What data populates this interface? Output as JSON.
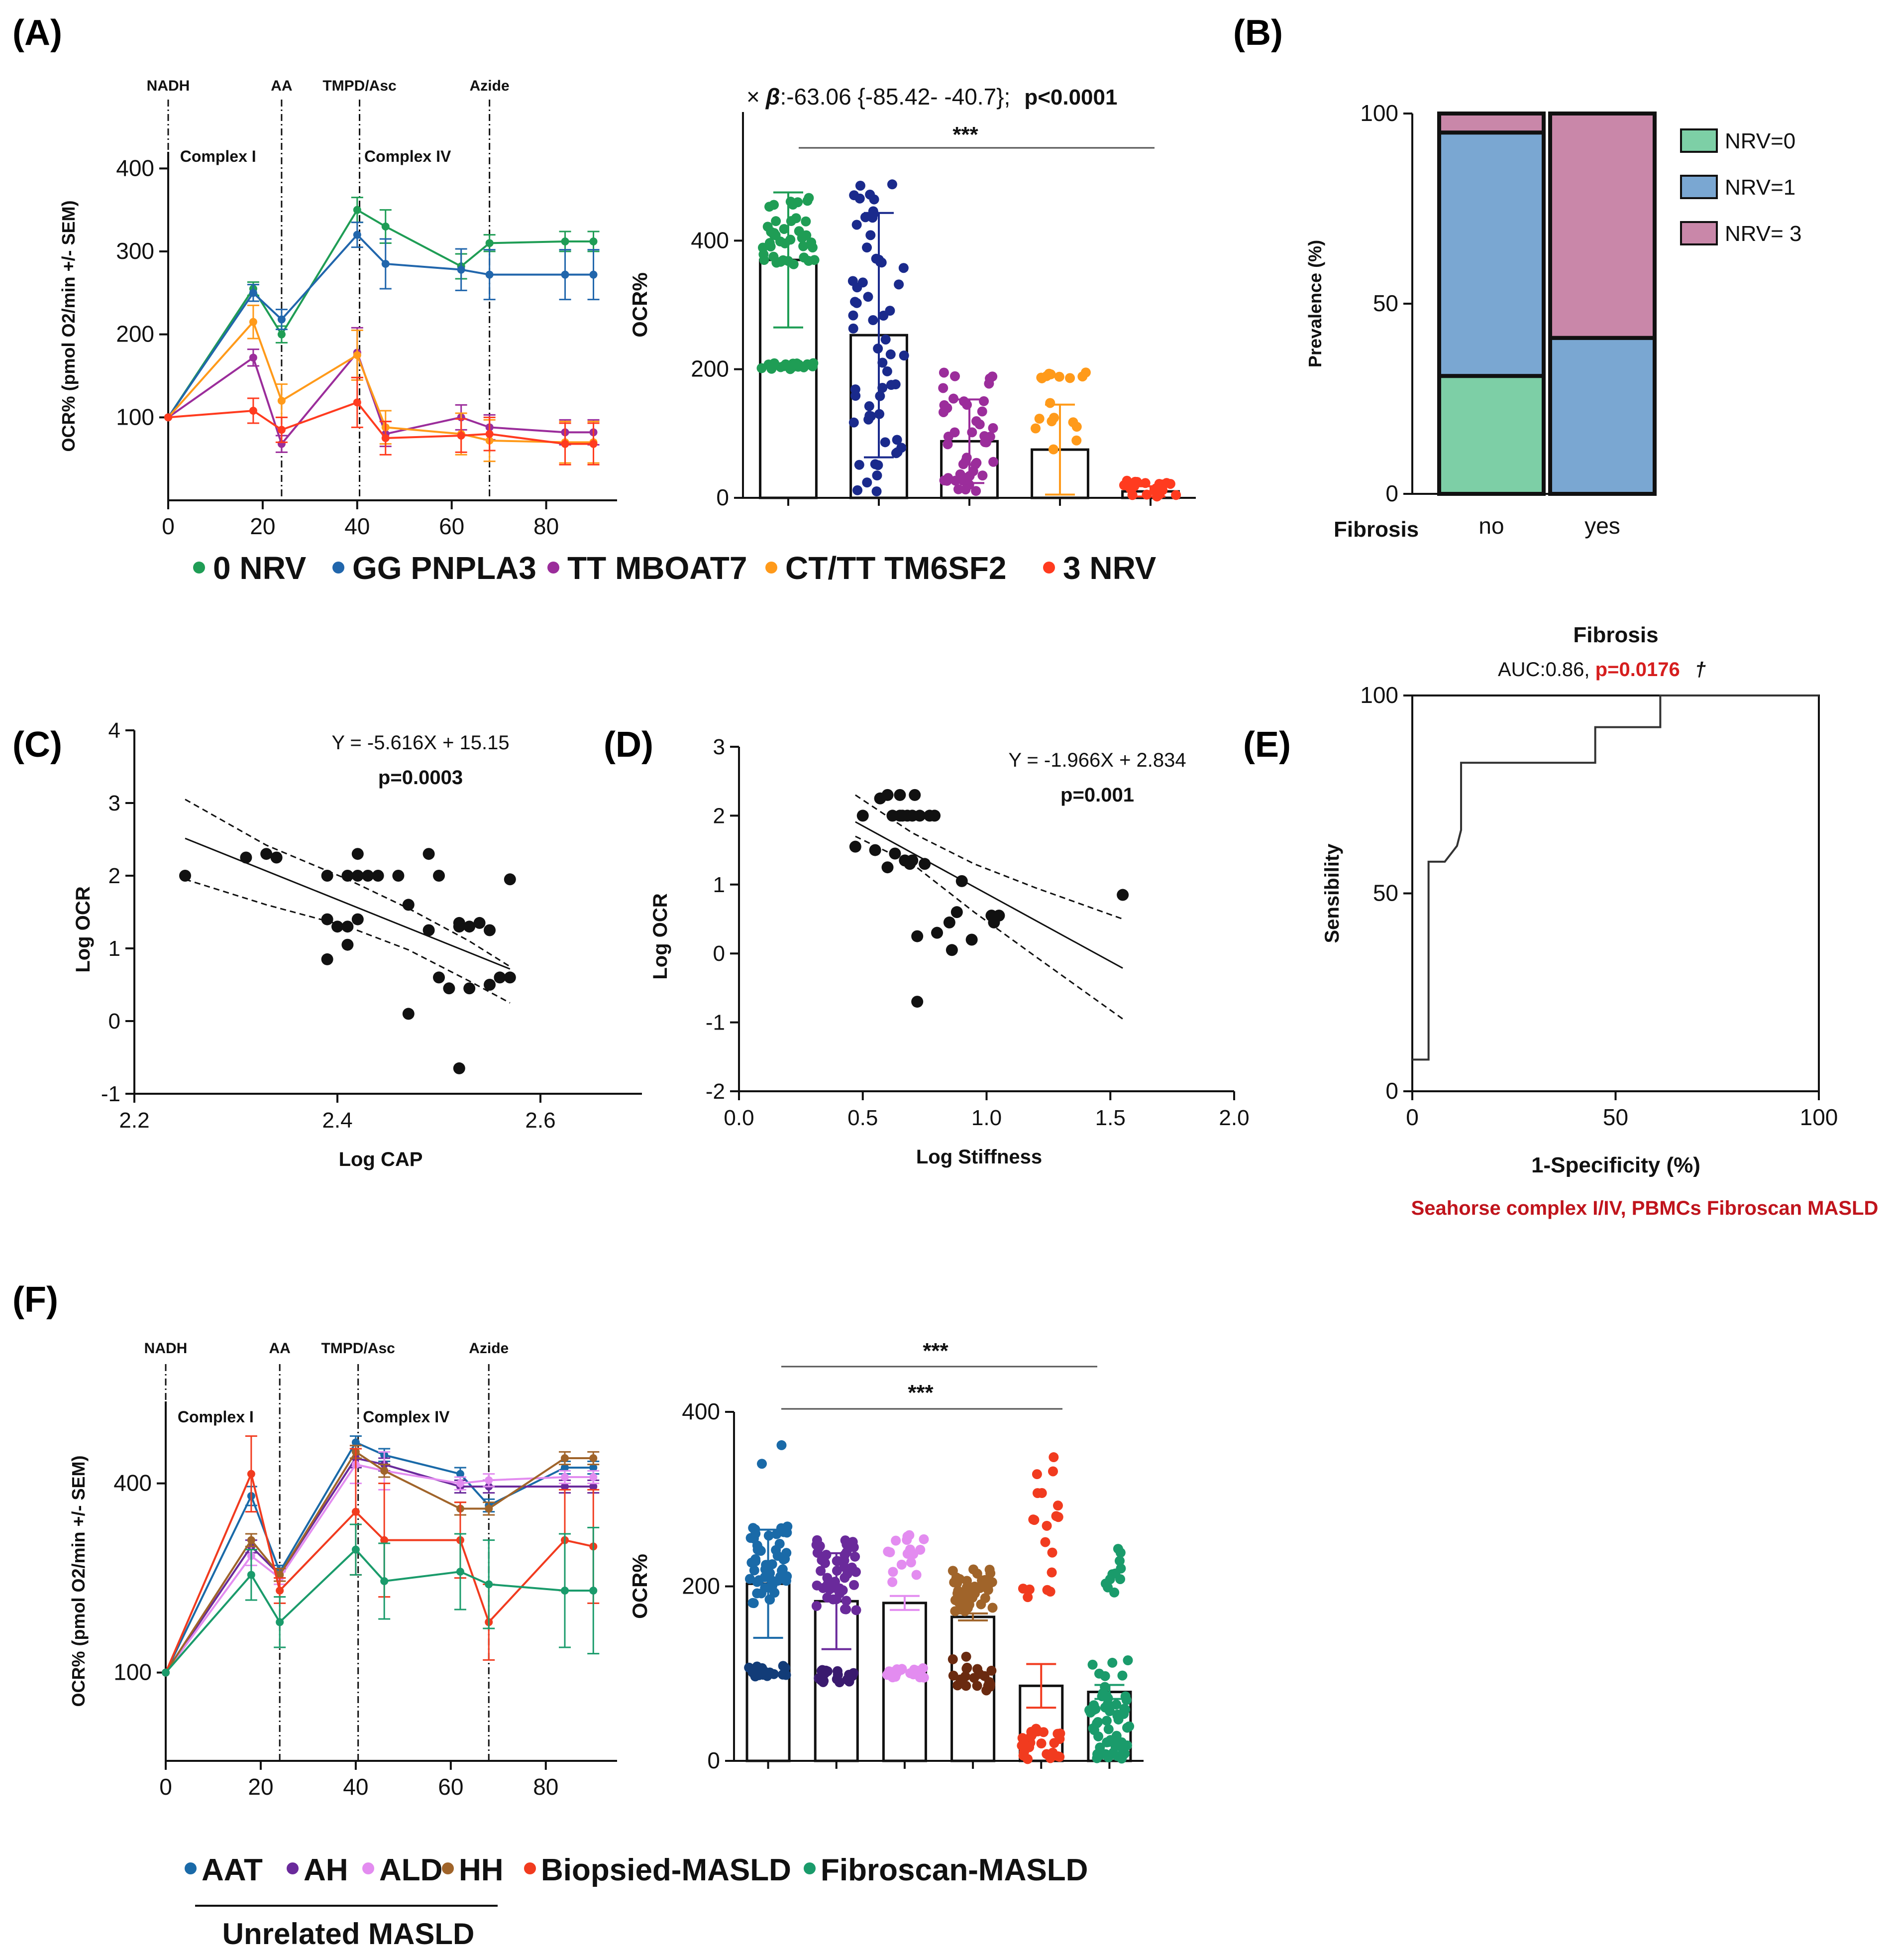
{
  "panels": {
    "A": "(A)",
    "B": "(B)",
    "C": "(C)",
    "D": "(D)",
    "E": "(E)",
    "F": "(F)"
  },
  "palette": {
    "green": "#1f9d55",
    "blue": "#2166ac",
    "navy": "#1a2a8c",
    "purple": "#9b2d9b",
    "orange": "#ff9a1a",
    "red": "#ff3b1f",
    "teal": "#1a9b6b",
    "steel": "#1a6aa8",
    "violet": "#6a2a9b",
    "pink": "#e38cf0",
    "brown": "#a0642a",
    "redF": "#f13b1f"
  },
  "chart_data": [
    {
      "id": "A_line",
      "type": "line",
      "ylabel": "OCR% (pmol O2/min +/- SEM)",
      "xlim": [
        0,
        95
      ],
      "ylim": [
        0,
        420
      ],
      "xticks": [
        "0",
        "20",
        "40",
        "60",
        "80"
      ],
      "yticks": [
        "100",
        "200",
        "300",
        "400"
      ],
      "events": [
        {
          "label": "NADH",
          "x": 0
        },
        {
          "label": "AA",
          "x": 24
        },
        {
          "label": "TMPD/Asc",
          "x": 40.5
        },
        {
          "label": "Azide",
          "x": 68
        }
      ],
      "regions": [
        "Complex I",
        "Complex IV"
      ],
      "x": [
        0,
        18,
        24,
        40,
        46,
        62,
        68,
        84,
        90
      ],
      "series": [
        {
          "name": "0 NRV",
          "color": "#1f9d55",
          "values": [
            100,
            255,
            200,
            350,
            330,
            282,
            310,
            312,
            312
          ],
          "err": [
            0,
            8,
            10,
            15,
            20,
            15,
            10,
            12,
            12
          ]
        },
        {
          "name": "GG PNPLA3",
          "color": "#2166ac",
          "values": [
            100,
            250,
            218,
            320,
            285,
            278,
            272,
            272,
            272
          ],
          "err": [
            0,
            10,
            12,
            15,
            30,
            25,
            30,
            30,
            30
          ]
        },
        {
          "name": "TT MBOAT7",
          "color": "#9b2d9b",
          "values": [
            100,
            172,
            68,
            178,
            80,
            100,
            88,
            82,
            82
          ],
          "err": [
            0,
            10,
            10,
            30,
            15,
            15,
            15,
            15,
            15
          ]
        },
        {
          "name": "CT/TT TM6SF2",
          "color": "#ff9a1a",
          "values": [
            100,
            215,
            120,
            175,
            88,
            80,
            72,
            70,
            70
          ],
          "err": [
            0,
            20,
            20,
            30,
            20,
            25,
            25,
            25,
            25
          ]
        },
        {
          "name": "3 NRV",
          "color": "#ff3b1f",
          "values": [
            100,
            108,
            85,
            118,
            75,
            78,
            80,
            68,
            68
          ],
          "err": [
            0,
            15,
            15,
            30,
            20,
            20,
            20,
            25,
            25
          ]
        }
      ]
    },
    {
      "id": "A_bar",
      "type": "bar",
      "ylabel": "OCR%",
      "ylim": [
        0,
        600
      ],
      "yticks": [
        "0",
        "200",
        "400"
      ],
      "stat_prefix": "×",
      "stat_beta": "β",
      "stat_text": ":-63.06 {-85.42- -40.7};",
      "stat_p": "p<0.0001",
      "significance": "***",
      "categories": [
        "0 NRV",
        "GG PNPLA3",
        "TT MBOAT7",
        "CT/TT TM6SF2",
        "3 NRV"
      ],
      "values": [
        370,
        253,
        88,
        75,
        10
      ],
      "sd": [
        105,
        190,
        65,
        70,
        8
      ],
      "colors": [
        "#1f9d55",
        "#1a2a8c",
        "#9b2d9b",
        "#ff9a1a",
        "#ff3b1f"
      ]
    },
    {
      "id": "B",
      "type": "stacked-bar",
      "ylabel": "Prevalence (%)",
      "xlabel": "Fibrosis",
      "ylim": [
        0,
        100
      ],
      "yticks": [
        "0",
        "50",
        "100"
      ],
      "categories": [
        "no",
        "yes"
      ],
      "series": [
        {
          "name": "NRV=0",
          "color": "#7dcfa6",
          "values": [
            31,
            0
          ]
        },
        {
          "name": "NRV=1",
          "color": "#7aa7d2",
          "values": [
            64,
            41
          ]
        },
        {
          "name": "NRV=  3",
          "color": "#c987a9",
          "values": [
            5,
            59
          ]
        }
      ]
    },
    {
      "id": "C",
      "type": "scatter",
      "xlabel": "Log CAP",
      "ylabel": "Log OCR",
      "xlim": [
        2.2,
        2.7
      ],
      "ylim": [
        -1,
        4
      ],
      "xticks": [
        "2.2",
        "2.4",
        "2.6"
      ],
      "yticks": [
        "-1",
        "0",
        "1",
        "2",
        "3",
        "4"
      ],
      "equation": "Y = -5.616X + 15.15",
      "p": "p=0.0003",
      "fit": {
        "slope": -5.616,
        "intercept": 15.15,
        "x_range": [
          2.25,
          2.57
        ]
      },
      "ci_upper": [
        [
          2.25,
          3.05
        ],
        [
          2.33,
          2.42
        ],
        [
          2.41,
          1.95
        ],
        [
          2.47,
          1.55
        ],
        [
          2.53,
          1.1
        ],
        [
          2.57,
          0.75
        ]
      ],
      "ci_lower": [
        [
          2.25,
          1.95
        ],
        [
          2.33,
          1.6
        ],
        [
          2.41,
          1.3
        ],
        [
          2.47,
          0.98
        ],
        [
          2.53,
          0.55
        ],
        [
          2.57,
          0.25
        ]
      ],
      "points": [
        [
          2.25,
          2.0
        ],
        [
          2.31,
          2.25
        ],
        [
          2.33,
          2.3
        ],
        [
          2.34,
          2.25
        ],
        [
          2.39,
          2.0
        ],
        [
          2.39,
          1.4
        ],
        [
          2.39,
          0.85
        ],
        [
          2.4,
          1.3
        ],
        [
          2.41,
          2.0
        ],
        [
          2.41,
          1.3
        ],
        [
          2.41,
          1.05
        ],
        [
          2.42,
          1.4
        ],
        [
          2.42,
          2.0
        ],
        [
          2.42,
          2.3
        ],
        [
          2.43,
          2.0
        ],
        [
          2.44,
          2.0
        ],
        [
          2.46,
          2.0
        ],
        [
          2.47,
          1.6
        ],
        [
          2.47,
          0.1
        ],
        [
          2.49,
          1.25
        ],
        [
          2.49,
          2.3
        ],
        [
          2.5,
          0.6
        ],
        [
          2.5,
          2.0
        ],
        [
          2.51,
          0.45
        ],
        [
          2.52,
          1.3
        ],
        [
          2.52,
          1.35
        ],
        [
          2.53,
          1.3
        ],
        [
          2.53,
          0.45
        ],
        [
          2.52,
          -0.65
        ],
        [
          2.55,
          0.5
        ],
        [
          2.56,
          0.6
        ],
        [
          2.57,
          0.6
        ],
        [
          2.57,
          1.95
        ],
        [
          2.54,
          1.35
        ],
        [
          2.55,
          1.25
        ]
      ]
    },
    {
      "id": "D",
      "type": "scatter",
      "xlabel": "Log Stiffness",
      "ylabel": "Log OCR",
      "xlim": [
        0.0,
        2.0
      ],
      "ylim": [
        -2,
        3
      ],
      "xticks": [
        "0.0",
        "0.5",
        "1.0",
        "1.5",
        "2.0"
      ],
      "yticks": [
        "-2",
        "-1",
        "0",
        "1",
        "2",
        "3"
      ],
      "equation": "Y = -1.966X + 2.834",
      "p": "p=0.001",
      "fit": {
        "slope": -1.966,
        "intercept": 2.834,
        "x_range": [
          0.47,
          1.55
        ]
      },
      "ci_upper": [
        [
          0.47,
          2.3
        ],
        [
          0.7,
          1.75
        ],
        [
          0.95,
          1.3
        ],
        [
          1.2,
          0.95
        ],
        [
          1.55,
          0.5
        ]
      ],
      "ci_lower": [
        [
          0.47,
          1.7
        ],
        [
          0.7,
          1.3
        ],
        [
          0.95,
          0.6
        ],
        [
          1.2,
          -0.05
        ],
        [
          1.55,
          -0.95
        ]
      ],
      "points": [
        [
          0.47,
          1.55
        ],
        [
          0.5,
          2.0
        ],
        [
          0.55,
          1.5
        ],
        [
          0.57,
          2.25
        ],
        [
          0.6,
          2.3
        ],
        [
          0.6,
          1.25
        ],
        [
          0.62,
          2.0
        ],
        [
          0.63,
          1.45
        ],
        [
          0.65,
          2.0
        ],
        [
          0.65,
          2.3
        ],
        [
          0.66,
          2.0
        ],
        [
          0.67,
          1.35
        ],
        [
          0.68,
          2.0
        ],
        [
          0.69,
          1.3
        ],
        [
          0.7,
          2.0
        ],
        [
          0.7,
          1.35
        ],
        [
          0.71,
          2.3
        ],
        [
          0.72,
          0.25
        ],
        [
          0.72,
          -0.7
        ],
        [
          0.73,
          2.0
        ],
        [
          0.75,
          1.3
        ],
        [
          0.77,
          2.0
        ],
        [
          0.79,
          2.0
        ],
        [
          0.8,
          0.3
        ],
        [
          0.85,
          0.45
        ],
        [
          0.86,
          0.05
        ],
        [
          0.88,
          0.6
        ],
        [
          0.9,
          1.05
        ],
        [
          0.94,
          0.2
        ],
        [
          1.02,
          0.55
        ],
        [
          1.03,
          0.45
        ],
        [
          1.05,
          0.55
        ],
        [
          1.55,
          0.85
        ]
      ]
    },
    {
      "id": "E",
      "type": "line",
      "title": "Fibrosis",
      "auc_text": "AUC:0.86, ",
      "auc_p": "p=0.0176",
      "dagger": "†",
      "xlabel": "1-Specificity (%)",
      "ylabel": "Sensibility",
      "xlim": [
        0,
        100
      ],
      "ylim": [
        0,
        100
      ],
      "xticks": [
        "0",
        "50",
        "100"
      ],
      "yticks": [
        "0",
        "50",
        "100"
      ],
      "caption": "Seahorse complex I/IV, PBMCs Fibroscan MASLD",
      "roc": [
        [
          0,
          8
        ],
        [
          4,
          8
        ],
        [
          4,
          58
        ],
        [
          8,
          58
        ],
        [
          8,
          58
        ],
        [
          11,
          62
        ],
        [
          12,
          66
        ],
        [
          12,
          83
        ],
        [
          45,
          83
        ],
        [
          45,
          92
        ],
        [
          61,
          92
        ],
        [
          61,
          100
        ],
        [
          100,
          100
        ]
      ]
    },
    {
      "id": "F_line",
      "type": "line",
      "ylabel": "OCR% (pmol O2/min +/- SEM)",
      "xlim": [
        0,
        95
      ],
      "ylim": [
        -40,
        530
      ],
      "xticks": [
        "0",
        "20",
        "40",
        "60",
        "80"
      ],
      "yticks": [
        "100",
        "400"
      ],
      "events": [
        {
          "label": "NADH",
          "x": 0
        },
        {
          "label": "AA",
          "x": 24
        },
        {
          "label": "TMPD/Asc",
          "x": 40.5
        },
        {
          "label": "Azide",
          "x": 68
        }
      ],
      "regions": [
        "Complex I",
        "Complex IV"
      ],
      "x": [
        0,
        18,
        24,
        40,
        46,
        62,
        68,
        84,
        90
      ],
      "series": [
        {
          "name": "AAT",
          "color": "#1a6aa8",
          "values": [
            100,
            380,
            260,
            465,
            445,
            415,
            365,
            425,
            425
          ],
          "err": [
            0,
            15,
            10,
            10,
            10,
            10,
            10,
            10,
            10
          ]
        },
        {
          "name": "AH",
          "color": "#6a2a9b",
          "values": [
            100,
            300,
            255,
            440,
            430,
            395,
            395,
            395,
            395
          ],
          "err": [
            0,
            10,
            10,
            15,
            10,
            10,
            10,
            10,
            10
          ]
        },
        {
          "name": "ALD",
          "color": "#e38cf0",
          "values": [
            100,
            285,
            250,
            430,
            420,
            400,
            405,
            410,
            410
          ],
          "err": [
            0,
            15,
            10,
            30,
            30,
            10,
            10,
            10,
            10
          ]
        },
        {
          "name": "HH",
          "color": "#a0642a",
          "values": [
            100,
            310,
            255,
            450,
            420,
            360,
            360,
            440,
            440
          ],
          "err": [
            0,
            10,
            10,
            10,
            10,
            10,
            10,
            10,
            10
          ]
        },
        {
          "name": "Biopsied-MASLD",
          "color": "#f13b1f",
          "values": [
            100,
            415,
            230,
            355,
            310,
            310,
            180,
            310,
            300
          ],
          "err": [
            0,
            60,
            20,
            100,
            90,
            60,
            60,
            80,
            90
          ]
        },
        {
          "name": "Fibroscan-MASLD",
          "color": "#1a9b6b",
          "values": [
            100,
            255,
            180,
            295,
            245,
            260,
            240,
            230,
            230
          ],
          "err": [
            0,
            40,
            40,
            40,
            60,
            60,
            70,
            90,
            100
          ]
        }
      ]
    },
    {
      "id": "F_bar",
      "type": "bar",
      "ylabel": "OCR%",
      "ylim": [
        0,
        400
      ],
      "yticks": [
        "0",
        "200",
        "400"
      ],
      "significance": [
        "***",
        "***"
      ],
      "categories": [
        "AAT",
        "AH",
        "ALD",
        "HH",
        "Biopsied-MASLD",
        "Fibroscan-MASLD"
      ],
      "values": [
        203,
        183,
        181,
        165,
        86,
        79
      ],
      "sd": [
        62,
        55,
        8,
        4,
        25,
        8
      ],
      "colors": [
        "#1a6aa8",
        "#6a2a9b",
        "#e38cf0",
        "#a0642a",
        "#f13b1f",
        "#1a9b6b"
      ],
      "group_label": "Unrelated MASLD"
    }
  ]
}
